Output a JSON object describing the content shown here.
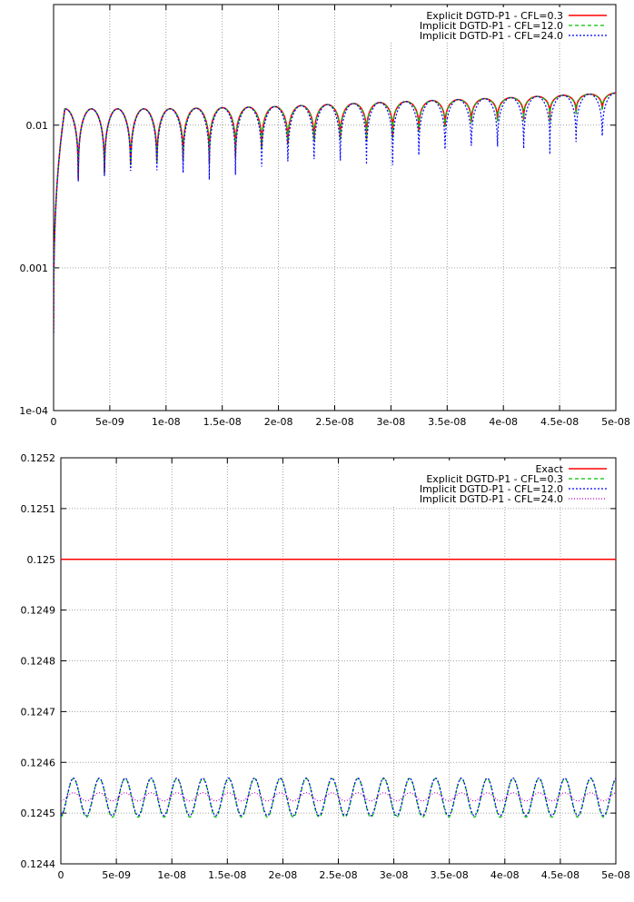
{
  "chart_data": [
    {
      "type": "line",
      "yscale": "log",
      "xlim": [
        0,
        5e-08
      ],
      "ylim": [
        0.0001,
        0.07
      ],
      "grid": true,
      "legend": "top-right",
      "xticks": [
        "0",
        "5e-09",
        "1e-08",
        "1.5e-08",
        "2e-08",
        "2.5e-08",
        "3e-08",
        "3.5e-08",
        "4e-08",
        "4.5e-08",
        "5e-08"
      ],
      "yticks": [
        "1e-04",
        "0.001",
        "0.01"
      ],
      "envelope": {
        "x": [
          1e-09,
          1e-08,
          2e-08,
          3e-08,
          4e-08,
          5e-08
        ],
        "peak": [
          0.013,
          0.013,
          0.0135,
          0.0145,
          0.0155,
          0.0168
        ]
      },
      "series": [
        {
          "name": "Explicit DGTD-P1 - CFL=0.3",
          "color": "#ff0000",
          "dash": "",
          "width": 1.6,
          "x": [
            0,
            5e-09,
            1e-08,
            1.5e-08,
            2e-08,
            2.5e-08,
            3e-08,
            3.5e-08,
            4e-08,
            4.5e-08,
            5e-08
          ],
          "trough": [
            0.0022,
            0.0022,
            0.003,
            0.0038,
            0.0045,
            0.0053,
            0.0063,
            0.0073,
            0.0085,
            0.0098,
            0.011
          ]
        },
        {
          "name": "Implicit DGTD-P1 - CFL=12.0",
          "color": "#00c000",
          "dash": "4,3",
          "width": 1.2,
          "x": [
            0,
            5e-09,
            1e-08,
            1.5e-08,
            2e-08,
            2.5e-08,
            3e-08,
            3.5e-08,
            4e-08,
            4.5e-08,
            5e-08
          ],
          "trough": [
            0.0021,
            0.0021,
            0.0029,
            0.0036,
            0.0043,
            0.0051,
            0.006,
            0.007,
            0.0081,
            0.0093,
            0.0105
          ]
        },
        {
          "name": "Implicit DGTD-P1 - CFL=24.0",
          "color": "#0000ff",
          "dash": "2,2",
          "width": 1.2,
          "x": [
            0,
            5e-09,
            1e-08,
            1.5e-08,
            2e-08,
            2.5e-08,
            3e-08,
            3.5e-08,
            4e-08,
            4.5e-08,
            5e-08
          ],
          "trough": [
            0.0021,
            0.002,
            0.0023,
            0.0025,
            0.0027,
            0.003,
            0.0033,
            0.0037,
            0.0041,
            0.0046,
            0.0052
          ]
        }
      ]
    },
    {
      "type": "line",
      "xlim": [
        0,
        5e-08
      ],
      "ylim": [
        0.1244,
        0.1252
      ],
      "grid": true,
      "legend": "top-right",
      "xticks": [
        "0",
        "5e-09",
        "1e-08",
        "1.5e-08",
        "2e-08",
        "2.5e-08",
        "3e-08",
        "3.5e-08",
        "4e-08",
        "4.5e-08",
        "5e-08"
      ],
      "yticks": [
        "0.1244",
        "0.1245",
        "0.1246",
        "0.1247",
        "0.1248",
        "0.1249",
        "0.125",
        "0.1251",
        "0.1252"
      ],
      "series": [
        {
          "name": "Exact",
          "color": "#ff0000",
          "dash": "",
          "width": 1.6,
          "kind": "constant",
          "value": 0.125
        },
        {
          "name": "Explicit DGTD-P1 - CFL=0.3",
          "color": "#00c000",
          "dash": "4,3",
          "width": 1.3,
          "kind": "oscillation",
          "mean": 0.12453,
          "amplitude": 3.8e-05,
          "period": 2.33e-09
        },
        {
          "name": "Implicit DGTD-P1 - CFL=12.0",
          "color": "#0000ff",
          "dash": "2,2",
          "width": 1.2,
          "kind": "oscillation",
          "mean": 0.124532,
          "amplitude": 3.7e-05,
          "period": 2.33e-09
        },
        {
          "name": "Implicit DGTD-P1 - CFL=24.0",
          "color": "#c000c0",
          "dash": "1,2",
          "width": 1.2,
          "kind": "oscillation",
          "mean": 0.124532,
          "amplitude": 8e-06,
          "period": 2.33e-09
        }
      ]
    }
  ]
}
